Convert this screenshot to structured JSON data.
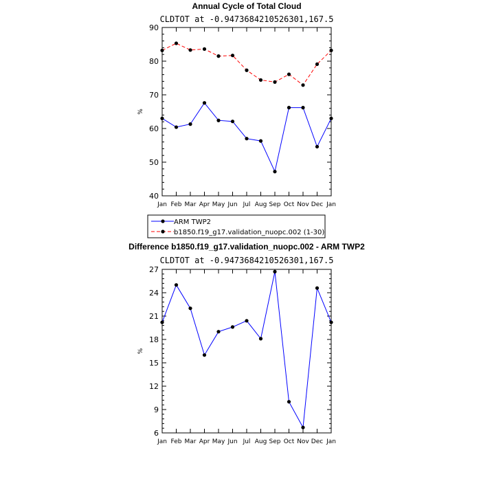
{
  "chart_data": [
    {
      "type": "line",
      "title": "Annual Cycle of Total Cloud",
      "subtitle": "CLDTOT at -0.9473684210526301,167.5",
      "xlabel": "",
      "ylabel": "%",
      "categories": [
        "Jan",
        "Feb",
        "Mar",
        "Apr",
        "May",
        "Jun",
        "Jul",
        "Aug",
        "Sep",
        "Oct",
        "Nov",
        "Dec",
        "Jan"
      ],
      "ylim": [
        40,
        90
      ],
      "yticks": [
        40,
        50,
        60,
        70,
        80,
        90
      ],
      "series": [
        {
          "name": "ARM TWP2",
          "color": "#0000ff",
          "dashed": false,
          "values": [
            63.0,
            60.4,
            61.3,
            67.6,
            62.4,
            62.1,
            57.0,
            56.3,
            47.2,
            66.2,
            66.2,
            54.6,
            63.0
          ]
        },
        {
          "name": "b1850.f19_g17.validation_nuopc.002 (1-30)",
          "color": "#ff0000",
          "dashed": true,
          "values": [
            83.2,
            85.3,
            83.3,
            83.6,
            81.5,
            81.7,
            77.3,
            74.4,
            73.8,
            76.1,
            72.9,
            79.1,
            83.2
          ]
        }
      ]
    },
    {
      "type": "line",
      "title": "Difference b1850.f19_g17.validation_nuopc.002 - ARM TWP2",
      "subtitle": "CLDTOT at -0.9473684210526301,167.5",
      "xlabel": "",
      "ylabel": "%",
      "categories": [
        "Jan",
        "Feb",
        "Mar",
        "Apr",
        "May",
        "Jun",
        "Jul",
        "Aug",
        "Sep",
        "Oct",
        "Nov",
        "Dec",
        "Jan"
      ],
      "ylim": [
        6,
        27
      ],
      "yticks": [
        6,
        9,
        12,
        15,
        18,
        21,
        24,
        27
      ],
      "series": [
        {
          "name": "Difference",
          "color": "#0000ff",
          "dashed": false,
          "values": [
            20.2,
            25.0,
            22.0,
            16.0,
            19.0,
            19.6,
            20.4,
            18.1,
            26.7,
            10.0,
            6.7,
            24.6,
            20.2
          ]
        }
      ]
    }
  ]
}
